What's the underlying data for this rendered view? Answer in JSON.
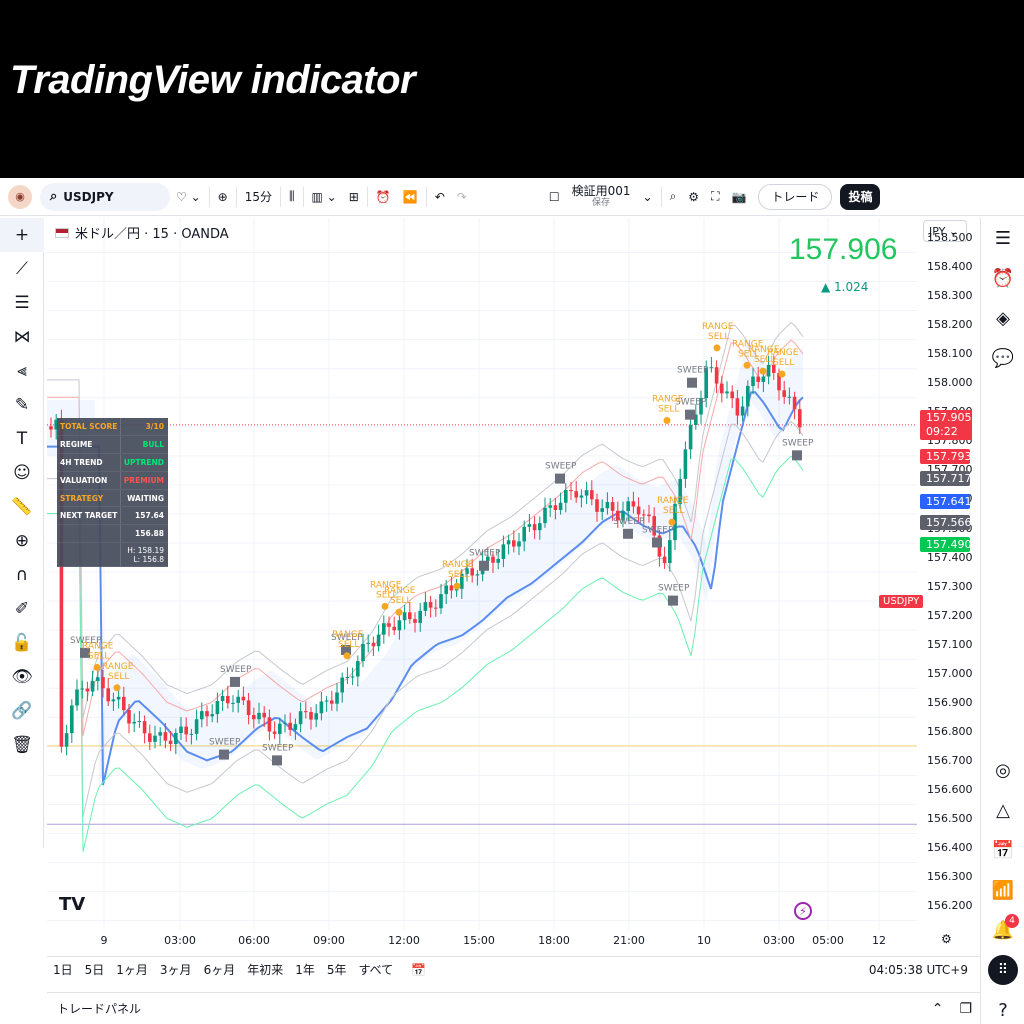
{
  "banner": {
    "title": "TradingView indicator"
  },
  "topbar": {
    "symbol": "USDJPY",
    "interval": "15分",
    "layout_name": "検証用001",
    "layout_saved": "保存",
    "trade_label": "トレード",
    "publish_label": "投稿"
  },
  "chart": {
    "header": "米ドル／円 · 15 · OANDA",
    "big_price": "157.906",
    "change": "▲ 1.024",
    "currency": "JPY",
    "symbol_label": "USDJPY",
    "current_price": "157.905",
    "countdown": "09:22",
    "price_ticks": [
      "158.500",
      "158.400",
      "158.300",
      "158.200",
      "158.100",
      "158.000",
      "157.900",
      "157.800",
      "157.700",
      "157.600",
      "157.500",
      "157.400",
      "157.300",
      "157.200",
      "157.100",
      "157.000",
      "156.900",
      "156.800",
      "156.700",
      "156.600",
      "156.500",
      "156.400",
      "156.300",
      "156.200"
    ],
    "price_labels": [
      {
        "value": "157.793",
        "color": "#f23645"
      },
      {
        "value": "157.717",
        "color": "#5d606b"
      },
      {
        "value": "157.641",
        "color": "#2962ff"
      },
      {
        "value": "157.566",
        "color": "#5d606b"
      },
      {
        "value": "157.490",
        "color": "#00c853"
      }
    ],
    "time_ticks": [
      "9",
      "03:00",
      "06:00",
      "09:00",
      "12:00",
      "15:00",
      "18:00",
      "21:00",
      "10",
      "03:00",
      "05:00",
      "12"
    ],
    "sweep_label": "SWEEP",
    "range_sell_label": "RANGE SELL"
  },
  "score_table": {
    "rows": [
      {
        "key": "TOTAL SCORE",
        "value": "3/10",
        "key_color": "#f5a623",
        "value_color": "#f5a623"
      },
      {
        "key": "REGIME",
        "value": "BULL",
        "key_color": "#ffffff",
        "value_color": "#00e676"
      },
      {
        "key": "4H TREND",
        "value": "UPTREND",
        "key_color": "#ffffff",
        "value_color": "#00e676"
      },
      {
        "key": "VALUATION",
        "value": "PREMIUM",
        "key_color": "#ffffff",
        "value_color": "#ff5252"
      },
      {
        "key": "STRATEGY",
        "value": "WAITING",
        "key_color": "#f5a623",
        "value_color": "#ffffff"
      },
      {
        "key": "NEXT TARGET",
        "value": "157.64",
        "key_color": "#ffffff",
        "value_color": "#ffffff"
      },
      {
        "key": "",
        "value": "156.88",
        "key_color": "#ffffff",
        "value_color": "#ffffff"
      },
      {
        "key": "",
        "value": "H: 158.19 L: 156.8",
        "key_color": "#ffffff",
        "value_color": "#ffffff"
      }
    ]
  },
  "range_bar": {
    "ranges": [
      "1日",
      "5日",
      "1ヶ月",
      "3ヶ月",
      "6ヶ月",
      "年初来",
      "1年",
      "5年",
      "すべて"
    ],
    "clock": "04:05:38 UTC+9"
  },
  "trade_panel": {
    "label": "トレードパネル"
  },
  "notifications": {
    "count": "4"
  },
  "colors": {
    "up": "#089981",
    "down": "#f23645",
    "signal": "#f5a623",
    "basis": "#2962ff"
  }
}
